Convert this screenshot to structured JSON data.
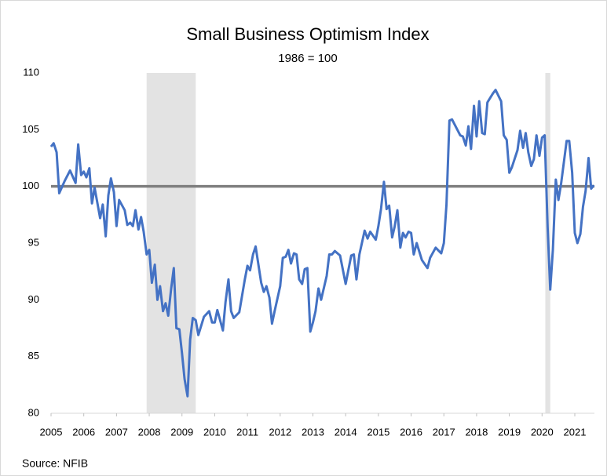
{
  "chart_data": {
    "type": "line",
    "title": "Small Business Optimism Index",
    "subtitle": "1986 = 100",
    "source": "Source: NFIB",
    "x": [
      2005.0,
      2005.08,
      2005.17,
      2005.25,
      2005.42,
      2005.58,
      2005.75,
      2005.83,
      2005.92,
      2006.0,
      2006.08,
      2006.17,
      2006.25,
      2006.33,
      2006.5,
      2006.58,
      2006.67,
      2006.75,
      2006.83,
      2006.92,
      2007.0,
      2007.08,
      2007.25,
      2007.33,
      2007.42,
      2007.5,
      2007.58,
      2007.67,
      2007.75,
      2007.83,
      2007.92,
      2008.0,
      2008.08,
      2008.17,
      2008.25,
      2008.33,
      2008.42,
      2008.5,
      2008.58,
      2008.67,
      2008.75,
      2008.83,
      2008.92,
      2009.0,
      2009.08,
      2009.17,
      2009.25,
      2009.33,
      2009.42,
      2009.5,
      2009.67,
      2009.83,
      2009.92,
      2010.0,
      2010.08,
      2010.25,
      2010.33,
      2010.42,
      2010.5,
      2010.58,
      2010.75,
      2010.92,
      2011.0,
      2011.08,
      2011.17,
      2011.25,
      2011.42,
      2011.5,
      2011.58,
      2011.67,
      2011.75,
      2011.83,
      2012.0,
      2012.08,
      2012.17,
      2012.25,
      2012.33,
      2012.42,
      2012.5,
      2012.58,
      2012.67,
      2012.75,
      2012.83,
      2012.92,
      2013.0,
      2013.08,
      2013.17,
      2013.25,
      2013.42,
      2013.5,
      2013.58,
      2013.67,
      2013.83,
      2014.0,
      2014.17,
      2014.25,
      2014.33,
      2014.42,
      2014.58,
      2014.67,
      2014.75,
      2014.92,
      2015.0,
      2015.08,
      2015.17,
      2015.25,
      2015.33,
      2015.42,
      2015.5,
      2015.58,
      2015.67,
      2015.75,
      2015.83,
      2015.92,
      2016.0,
      2016.08,
      2016.17,
      2016.33,
      2016.5,
      2016.58,
      2016.75,
      2016.92,
      2017.0,
      2017.08,
      2017.17,
      2017.25,
      2017.5,
      2017.58,
      2017.67,
      2017.75,
      2017.83,
      2017.92,
      2018.0,
      2018.08,
      2018.17,
      2018.25,
      2018.33,
      2018.5,
      2018.58,
      2018.75,
      2018.83,
      2018.92,
      2019.0,
      2019.08,
      2019.25,
      2019.33,
      2019.42,
      2019.5,
      2019.58,
      2019.67,
      2019.75,
      2019.83,
      2019.92,
      2020.0,
      2020.08,
      2020.17,
      2020.25,
      2020.33,
      2020.42,
      2020.5,
      2020.58,
      2020.75,
      2020.83,
      2020.92,
      2021.0,
      2021.08,
      2021.17,
      2021.25,
      2021.33,
      2021.42,
      2021.5,
      2021.58
    ],
    "series": [
      {
        "name": "Small Business Optimism Index",
        "color": "#4472c4",
        "values": [
          103.5,
          103.8,
          103.0,
          99.4,
          100.5,
          101.4,
          100.3,
          103.7,
          101.0,
          101.3,
          100.8,
          101.6,
          98.5,
          99.9,
          97.2,
          98.4,
          95.6,
          99.2,
          100.7,
          99.5,
          96.5,
          98.8,
          97.9,
          96.6,
          96.8,
          96.5,
          97.9,
          96.2,
          97.3,
          96.0,
          94.0,
          94.4,
          91.5,
          93.1,
          90.0,
          91.2,
          89.0,
          89.7,
          88.6,
          91.0,
          92.8,
          87.5,
          87.4,
          85.3,
          83.0,
          81.5,
          86.5,
          88.4,
          88.2,
          86.9,
          88.5,
          89.0,
          88.0,
          88.0,
          89.1,
          87.3,
          89.8,
          91.8,
          89.0,
          88.4,
          88.9,
          91.8,
          93.0,
          92.6,
          94.0,
          94.7,
          91.5,
          90.7,
          91.2,
          90.2,
          87.9,
          89.0,
          91.2,
          93.7,
          93.8,
          94.4,
          93.2,
          94.1,
          94.0,
          91.8,
          91.4,
          92.7,
          92.8,
          87.2,
          88.0,
          89.0,
          91.0,
          90.0,
          92.1,
          94.0,
          94.0,
          94.3,
          93.9,
          91.4,
          93.9,
          94.0,
          91.8,
          94.0,
          96.1,
          95.4,
          96.0,
          95.3,
          96.5,
          98.0,
          100.4,
          98.0,
          98.3,
          95.5,
          96.5,
          97.9,
          94.6,
          95.9,
          95.5,
          96.0,
          95.9,
          94.0,
          95.0,
          93.5,
          92.8,
          93.7,
          94.6,
          94.1,
          95.0,
          98.4,
          105.8,
          105.9,
          104.5,
          104.4,
          103.6,
          105.3,
          103.3,
          107.1,
          104.4,
          107.5,
          104.7,
          104.6,
          107.4,
          108.2,
          108.5,
          107.5,
          104.5,
          104.1,
          101.2,
          101.7,
          103.2,
          104.9,
          103.4,
          104.7,
          103.0,
          101.8,
          102.4,
          104.5,
          102.7,
          104.3,
          104.5,
          96.4,
          90.9,
          94.4,
          100.6,
          98.8,
          100.2,
          104.0,
          104.0,
          101.2,
          95.9,
          95.0,
          95.8,
          98.2,
          99.6,
          102.5,
          99.8,
          100.1
        ]
      }
    ],
    "xlim": [
      2005,
      2021.6
    ],
    "xticks": [
      2005,
      2006,
      2007,
      2008,
      2009,
      2010,
      2011,
      2012,
      2013,
      2014,
      2015,
      2016,
      2017,
      2018,
      2019,
      2020,
      2021
    ],
    "ylim": [
      80,
      110
    ],
    "yticks": [
      80,
      85,
      90,
      95,
      100,
      105,
      110
    ],
    "reference_line": 100,
    "reference_color": "#7f7f7f",
    "recessions": [
      [
        2007.92,
        2009.42
      ],
      [
        2020.1,
        2020.25
      ]
    ],
    "recession_color": "#e3e3e3",
    "grid": false
  }
}
